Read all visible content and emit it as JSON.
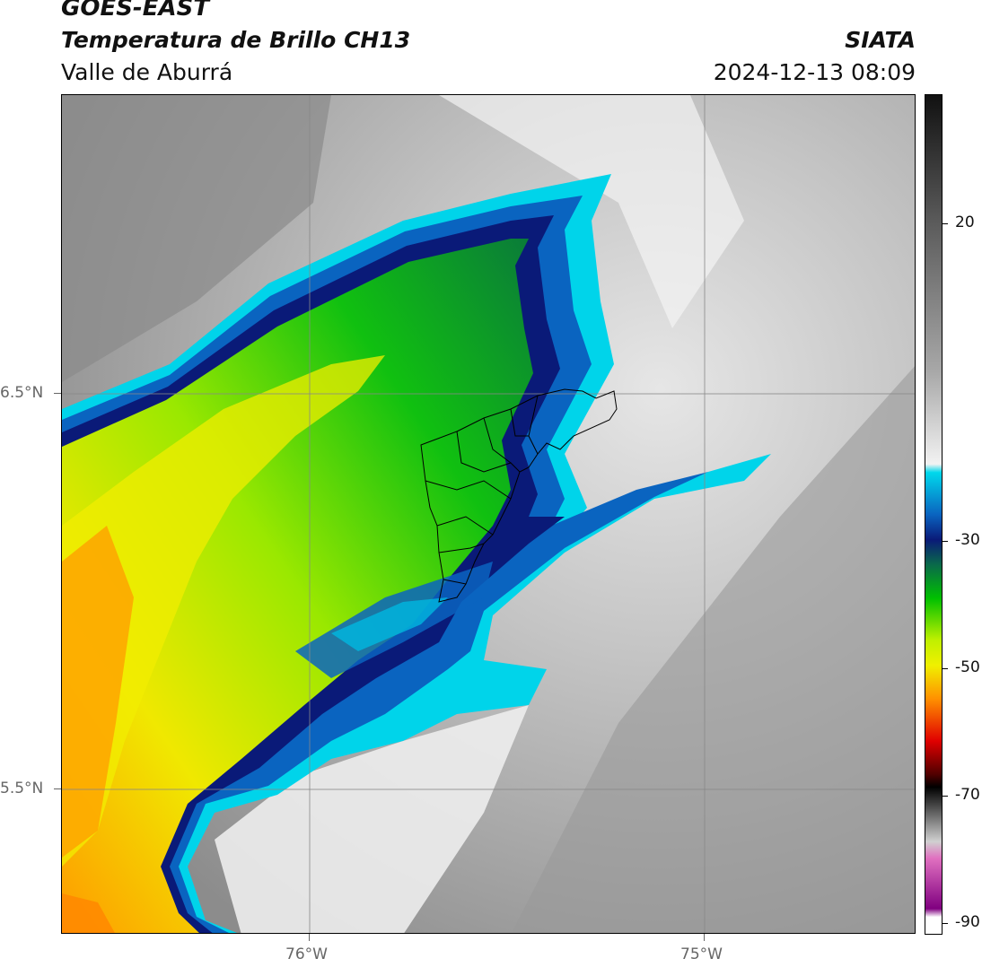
{
  "header": {
    "satellite": "GOES-EAST",
    "product": "Temperatura de Brillo CH13",
    "region": "Valle de Aburrá",
    "organization": "SIATA",
    "timestamp": "2024-12-13 08:09"
  },
  "map": {
    "lat_labels": [
      "6.5°N",
      "5.5°N"
    ],
    "lon_labels": [
      "76°W",
      "75°W"
    ],
    "gridlines": true
  },
  "colorbar": {
    "tick_labels": [
      "20",
      "-30",
      "-50",
      "-70",
      "-90"
    ],
    "colors": {
      "top": "#111111",
      "gray_high": "#5a5a5a",
      "gray_mid": "#a8a8a8",
      "white": "#f2f2f2",
      "cyan": "#00d8ec",
      "blue": "#0a64c0",
      "navy": "#0a1a78",
      "teal": "#0a6a4a",
      "green": "#00c000",
      "yellow_green": "#c0f000",
      "yellow": "#f0f000",
      "orange": "#ff9000",
      "red": "#e00000",
      "dark_red": "#500000",
      "black": "#000000",
      "light_gray": "#d0d0d0",
      "pink": "#e070c0",
      "purple": "#800080",
      "bottom": "#ffffff"
    }
  }
}
